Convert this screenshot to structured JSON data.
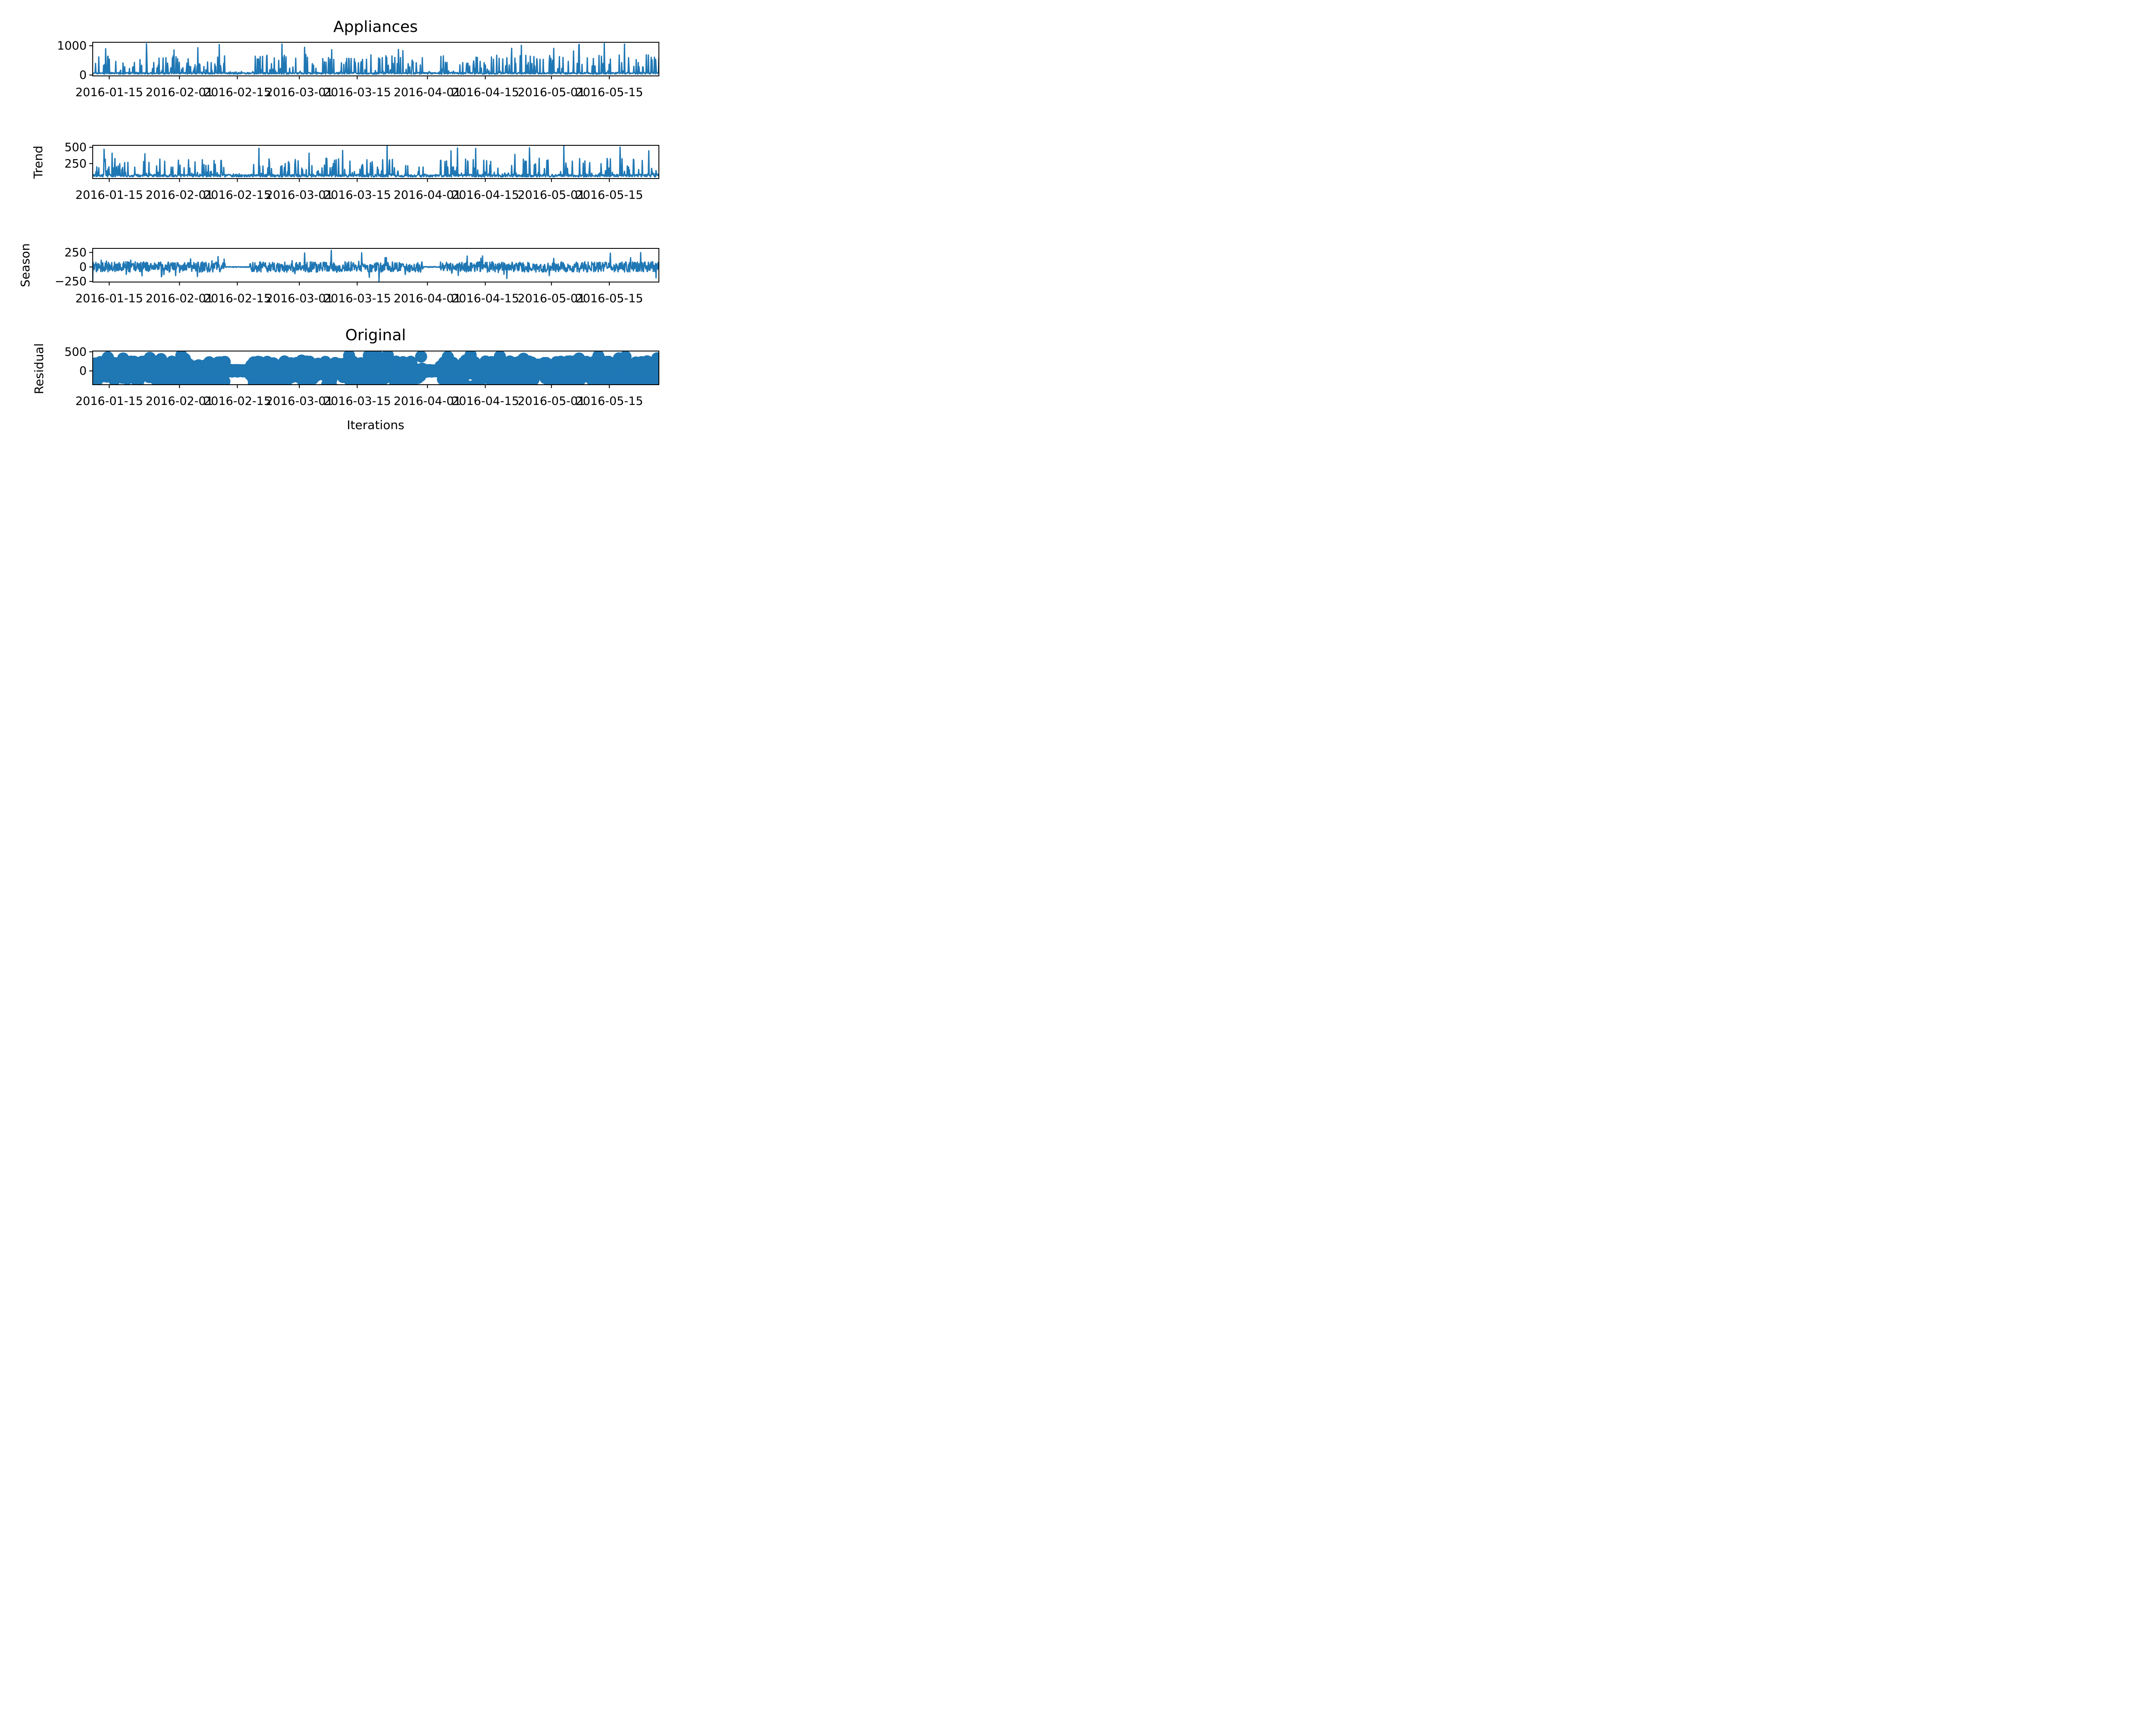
{
  "chart_data": [
    {
      "type": "line",
      "title": "Appliances",
      "ylabel": "",
      "xlabel": "",
      "x_start": "2016-01-11",
      "x_end": "2016-05-27",
      "xticks": [
        "2016-01-15",
        "2016-02-01",
        "2016-02-15",
        "2016-03-01",
        "2016-03-15",
        "2016-04-01",
        "2016-04-15",
        "2016-05-01",
        "2016-05-15"
      ],
      "yticks": [
        "1000",
        "0"
      ],
      "ylim": [
        -30,
        1120
      ],
      "series": [
        {
          "values": [
            10,
            1100
          ],
          "note_values": "approximate range 10–1100 Wh, spiky"
        }
      ],
      "grid": false
    },
    {
      "type": "line",
      "title": "",
      "ylabel": "Trend",
      "xlabel": "",
      "x_start": "2016-01-11",
      "x_end": "2016-05-27",
      "xticks": [
        "2016-01-15",
        "2016-02-01",
        "2016-02-15",
        "2016-03-01",
        "2016-03-15",
        "2016-04-01",
        "2016-04-15",
        "2016-05-01",
        "2016-05-15"
      ],
      "yticks": [
        "500",
        "250"
      ],
      "ylim": [
        20,
        530
      ],
      "series": [
        {
          "values": [
            40,
            510
          ]
        }
      ],
      "grid": false
    },
    {
      "type": "line",
      "title": "",
      "ylabel": "Season",
      "xlabel": "",
      "x_start": "2016-01-11",
      "x_end": "2016-05-27",
      "xticks": [
        "2016-01-15",
        "2016-02-01",
        "2016-02-15",
        "2016-03-01",
        "2016-03-15",
        "2016-04-01",
        "2016-04-15",
        "2016-05-01",
        "2016-05-15"
      ],
      "yticks": [
        "250",
        "0",
        "−250"
      ],
      "ylim": [
        -260,
        320
      ],
      "series": [
        {
          "values": [
            -250,
            310
          ]
        }
      ],
      "grid": false
    },
    {
      "type": "scatter",
      "title": "Original",
      "ylabel": "Residual",
      "xlabel": "Iterations",
      "x_start": "2016-01-11",
      "x_end": "2016-05-27",
      "xticks": [
        "2016-01-15",
        "2016-02-01",
        "2016-02-15",
        "2016-03-01",
        "2016-03-15",
        "2016-04-01",
        "2016-04-15",
        "2016-05-01",
        "2016-05-15"
      ],
      "yticks": [
        "500",
        "0"
      ],
      "ylim": [
        -360,
        520
      ],
      "series": [
        {
          "values": [
            -330,
            500
          ]
        }
      ],
      "grid": false
    }
  ],
  "colors": {
    "series": "#1f77b4",
    "axes": "#000000"
  }
}
